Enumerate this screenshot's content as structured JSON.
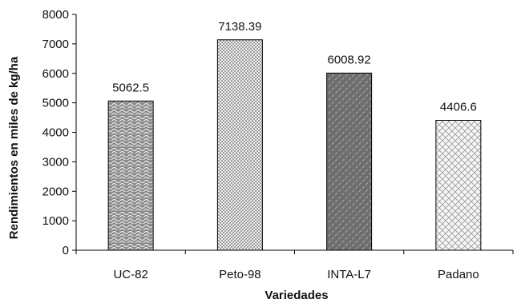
{
  "chart_data": {
    "type": "bar",
    "title": "",
    "xlabel": "Variedades",
    "ylabel": "Rendimientos en miles de kg/ha",
    "categories": [
      "UC-82",
      "Peto-98",
      "INTA-L7",
      "Padano"
    ],
    "values": [
      5062.5,
      7138.39,
      6008.92,
      4406.6
    ],
    "data_labels": [
      "5062.5",
      "7138.39",
      "6008.92",
      "4406.6"
    ],
    "ylim": [
      0,
      8000
    ],
    "yticks": [
      0,
      1000,
      2000,
      3000,
      4000,
      5000,
      6000,
      7000,
      8000
    ],
    "grid": false,
    "legend": "none",
    "bar_patterns": [
      "wave",
      "checker",
      "diagonal-dense",
      "diamond-light"
    ]
  }
}
